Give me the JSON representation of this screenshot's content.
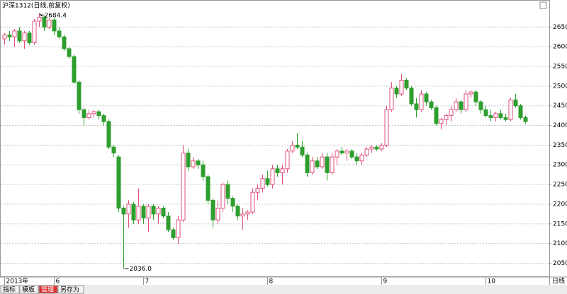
{
  "chart_data": {
    "type": "candlestick",
    "title": "沪深1312(日线,前复权)",
    "categories": [
      "2013年",
      null,
      null,
      null,
      null,
      null,
      null,
      null,
      null,
      null,
      "6",
      null,
      null,
      null,
      null,
      null,
      null,
      null,
      null,
      null,
      null,
      null,
      null,
      null,
      null,
      null,
      null,
      null,
      "7",
      null,
      null,
      null,
      null,
      null,
      null,
      null,
      null,
      null,
      null,
      null,
      null,
      null,
      null,
      null,
      null,
      null,
      null,
      null,
      null,
      null,
      null,
      null,
      null,
      "8",
      null,
      null,
      null,
      null,
      null,
      null,
      null,
      null,
      null,
      null,
      null,
      null,
      null,
      null,
      null,
      null,
      null,
      null,
      null,
      null,
      null,
      null,
      "9",
      null,
      null,
      null,
      null,
      null,
      null,
      null,
      null,
      null,
      null,
      null,
      null,
      null,
      null,
      null,
      null,
      null,
      null,
      null,
      null,
      "10",
      null,
      null,
      null,
      null,
      null,
      null,
      null,
      null
    ],
    "open": [
      2620,
      2630,
      2625,
      2640,
      2615,
      2635,
      2610,
      2665,
      2675,
      2650,
      2668,
      2640,
      2625,
      2595,
      2575,
      2510,
      2440,
      2420,
      2430,
      2435,
      2425,
      2410,
      2345,
      2320,
      2190,
      2175,
      2200,
      2160,
      2195,
      2165,
      2195,
      2175,
      2190,
      2170,
      2135,
      2115,
      2160,
      2330,
      2295,
      2310,
      2300,
      2270,
      2210,
      2160,
      2190,
      2250,
      2215,
      2195,
      2170,
      2175,
      2180,
      2230,
      2240,
      2265,
      2250,
      2290,
      2280,
      2290,
      2335,
      2350,
      2345,
      2325,
      2280,
      2310,
      2295,
      2320,
      2280,
      2320,
      2335,
      2330,
      2335,
      2320,
      2310,
      2325,
      2340,
      2345,
      2340,
      2350,
      2440,
      2495,
      2480,
      2515,
      2495,
      2455,
      2440,
      2480,
      2460,
      2445,
      2405,
      2415,
      2425,
      2440,
      2460,
      2440,
      2480,
      2485,
      2460,
      2440,
      2425,
      2420,
      2430,
      2420,
      2415,
      2465,
      2450,
      2420
    ],
    "high": [
      2635,
      2640,
      2645,
      2650,
      2640,
      2640,
      2670,
      2684.4,
      2680,
      2672,
      2672,
      2650,
      2630,
      2600,
      2580,
      2515,
      2445,
      2440,
      2440,
      2440,
      2430,
      2415,
      2350,
      2325,
      2195,
      2210,
      2205,
      2240,
      2200,
      2200,
      2200,
      2195,
      2195,
      2180,
      2140,
      2170,
      2350,
      2340,
      2320,
      2315,
      2310,
      2275,
      2215,
      2210,
      2255,
      2260,
      2220,
      2200,
      2190,
      2185,
      2240,
      2250,
      2275,
      2285,
      2300,
      2300,
      2300,
      2340,
      2360,
      2380,
      2360,
      2330,
      2320,
      2320,
      2330,
      2330,
      2330,
      2340,
      2345,
      2340,
      2340,
      2330,
      2330,
      2345,
      2350,
      2350,
      2355,
      2450,
      2510,
      2500,
      2530,
      2520,
      2500,
      2470,
      2490,
      2485,
      2465,
      2450,
      2420,
      2430,
      2450,
      2470,
      2465,
      2490,
      2490,
      2490,
      2465,
      2450,
      2440,
      2435,
      2440,
      2430,
      2470,
      2480,
      2455,
      2425
    ],
    "low": [
      2605,
      2615,
      2600,
      2610,
      2595,
      2605,
      2605,
      2650,
      2640,
      2645,
      2630,
      2620,
      2590,
      2570,
      2505,
      2430,
      2400,
      2415,
      2420,
      2415,
      2400,
      2340,
      2320,
      2180,
      2036,
      2140,
      2150,
      2150,
      2150,
      2130,
      2160,
      2150,
      2165,
      2130,
      2110,
      2100,
      2155,
      2285,
      2290,
      2290,
      2260,
      2200,
      2140,
      2150,
      2180,
      2200,
      2180,
      2160,
      2135,
      2160,
      2175,
      2210,
      2230,
      2245,
      2240,
      2270,
      2250,
      2280,
      2330,
      2340,
      2320,
      2270,
      2275,
      2290,
      2290,
      2260,
      2275,
      2300,
      2325,
      2310,
      2315,
      2300,
      2300,
      2320,
      2330,
      2335,
      2335,
      2345,
      2435,
      2470,
      2475,
      2490,
      2450,
      2420,
      2435,
      2450,
      2440,
      2400,
      2390,
      2400,
      2410,
      2435,
      2430,
      2435,
      2470,
      2450,
      2430,
      2420,
      2410,
      2410,
      2415,
      2410,
      2410,
      2445,
      2415,
      2405
    ],
    "close": [
      2630,
      2625,
      2640,
      2615,
      2635,
      2610,
      2665,
      2675,
      2650,
      2668,
      2640,
      2625,
      2595,
      2575,
      2510,
      2440,
      2420,
      2430,
      2435,
      2425,
      2410,
      2345,
      2330,
      2190,
      2175,
      2200,
      2160,
      2195,
      2165,
      2195,
      2175,
      2190,
      2170,
      2135,
      2115,
      2160,
      2330,
      2295,
      2310,
      2300,
      2270,
      2210,
      2160,
      2190,
      2250,
      2215,
      2195,
      2170,
      2175,
      2180,
      2230,
      2240,
      2265,
      2250,
      2290,
      2280,
      2290,
      2335,
      2350,
      2345,
      2325,
      2280,
      2310,
      2295,
      2320,
      2280,
      2320,
      2335,
      2330,
      2335,
      2320,
      2310,
      2325,
      2340,
      2345,
      2340,
      2350,
      2440,
      2495,
      2480,
      2515,
      2495,
      2455,
      2440,
      2480,
      2460,
      2445,
      2405,
      2415,
      2425,
      2440,
      2460,
      2440,
      2480,
      2485,
      2460,
      2440,
      2425,
      2420,
      2430,
      2420,
      2415,
      2465,
      2450,
      2420,
      2410
    ],
    "up_color": "#e0507a",
    "down_color": "#2e9e2e",
    "annotations": [
      "2684.4",
      "2036.0"
    ],
    "period_label": "日线",
    "ylim": [
      2015,
      2690
    ],
    "yticks": [
      2050,
      2100,
      2150,
      2200,
      2250,
      2300,
      2350,
      2400,
      2450,
      2500,
      2550,
      2600,
      2650
    ],
    "grid": true
  },
  "toolbar": [
    "指标",
    "模板",
    "管理",
    "另存为"
  ]
}
